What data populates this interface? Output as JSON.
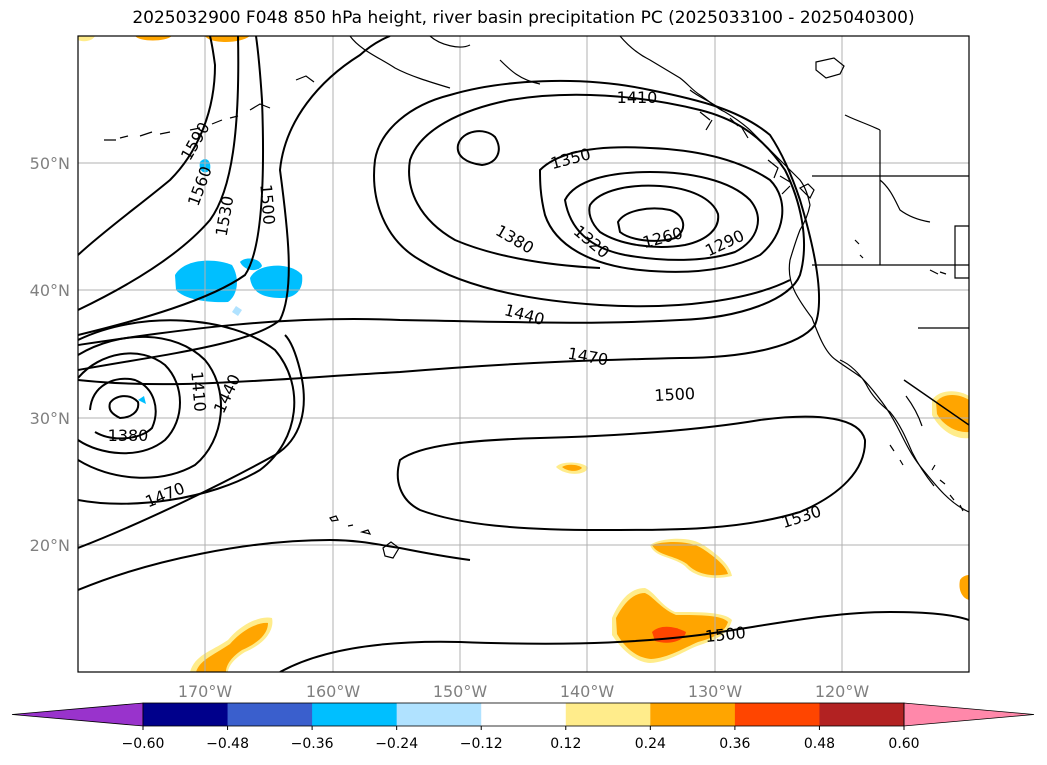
{
  "title": "2025032900 F048 850 hPa height, river basin precipitation PC (2025033100 - 2025040300)",
  "map": {
    "lat_labels": [
      "50°N",
      "40°N",
      "30°N",
      "20°N"
    ],
    "lon_labels": [
      "170°W",
      "160°W",
      "150°W",
      "140°W",
      "130°W",
      "120°W"
    ],
    "contour_labels": [
      "1590",
      "1560",
      "1530",
      "1500",
      "1410",
      "1380",
      "1320",
      "1350",
      "1260",
      "1290",
      "1440",
      "1470",
      "1500",
      "1410",
      "1440",
      "1380",
      "1470",
      "1530",
      "1500"
    ],
    "contour_color": "#000000",
    "coast_color": "#000000",
    "grid_color": "#b0b0b0"
  },
  "colorbar": {
    "tick_labels": [
      "−0.60",
      "−0.48",
      "−0.36",
      "−0.24",
      "−0.12",
      "0.12",
      "0.24",
      "0.36",
      "0.48",
      "0.60"
    ],
    "colors": [
      "#9933cc",
      "#00008b",
      "#3a5fcd",
      "#00bfff",
      "#b0e2ff",
      "#ffffff",
      "#ffec8b",
      "#ffa500",
      "#ff4500",
      "#b22222",
      "#ff88aa"
    ]
  }
}
